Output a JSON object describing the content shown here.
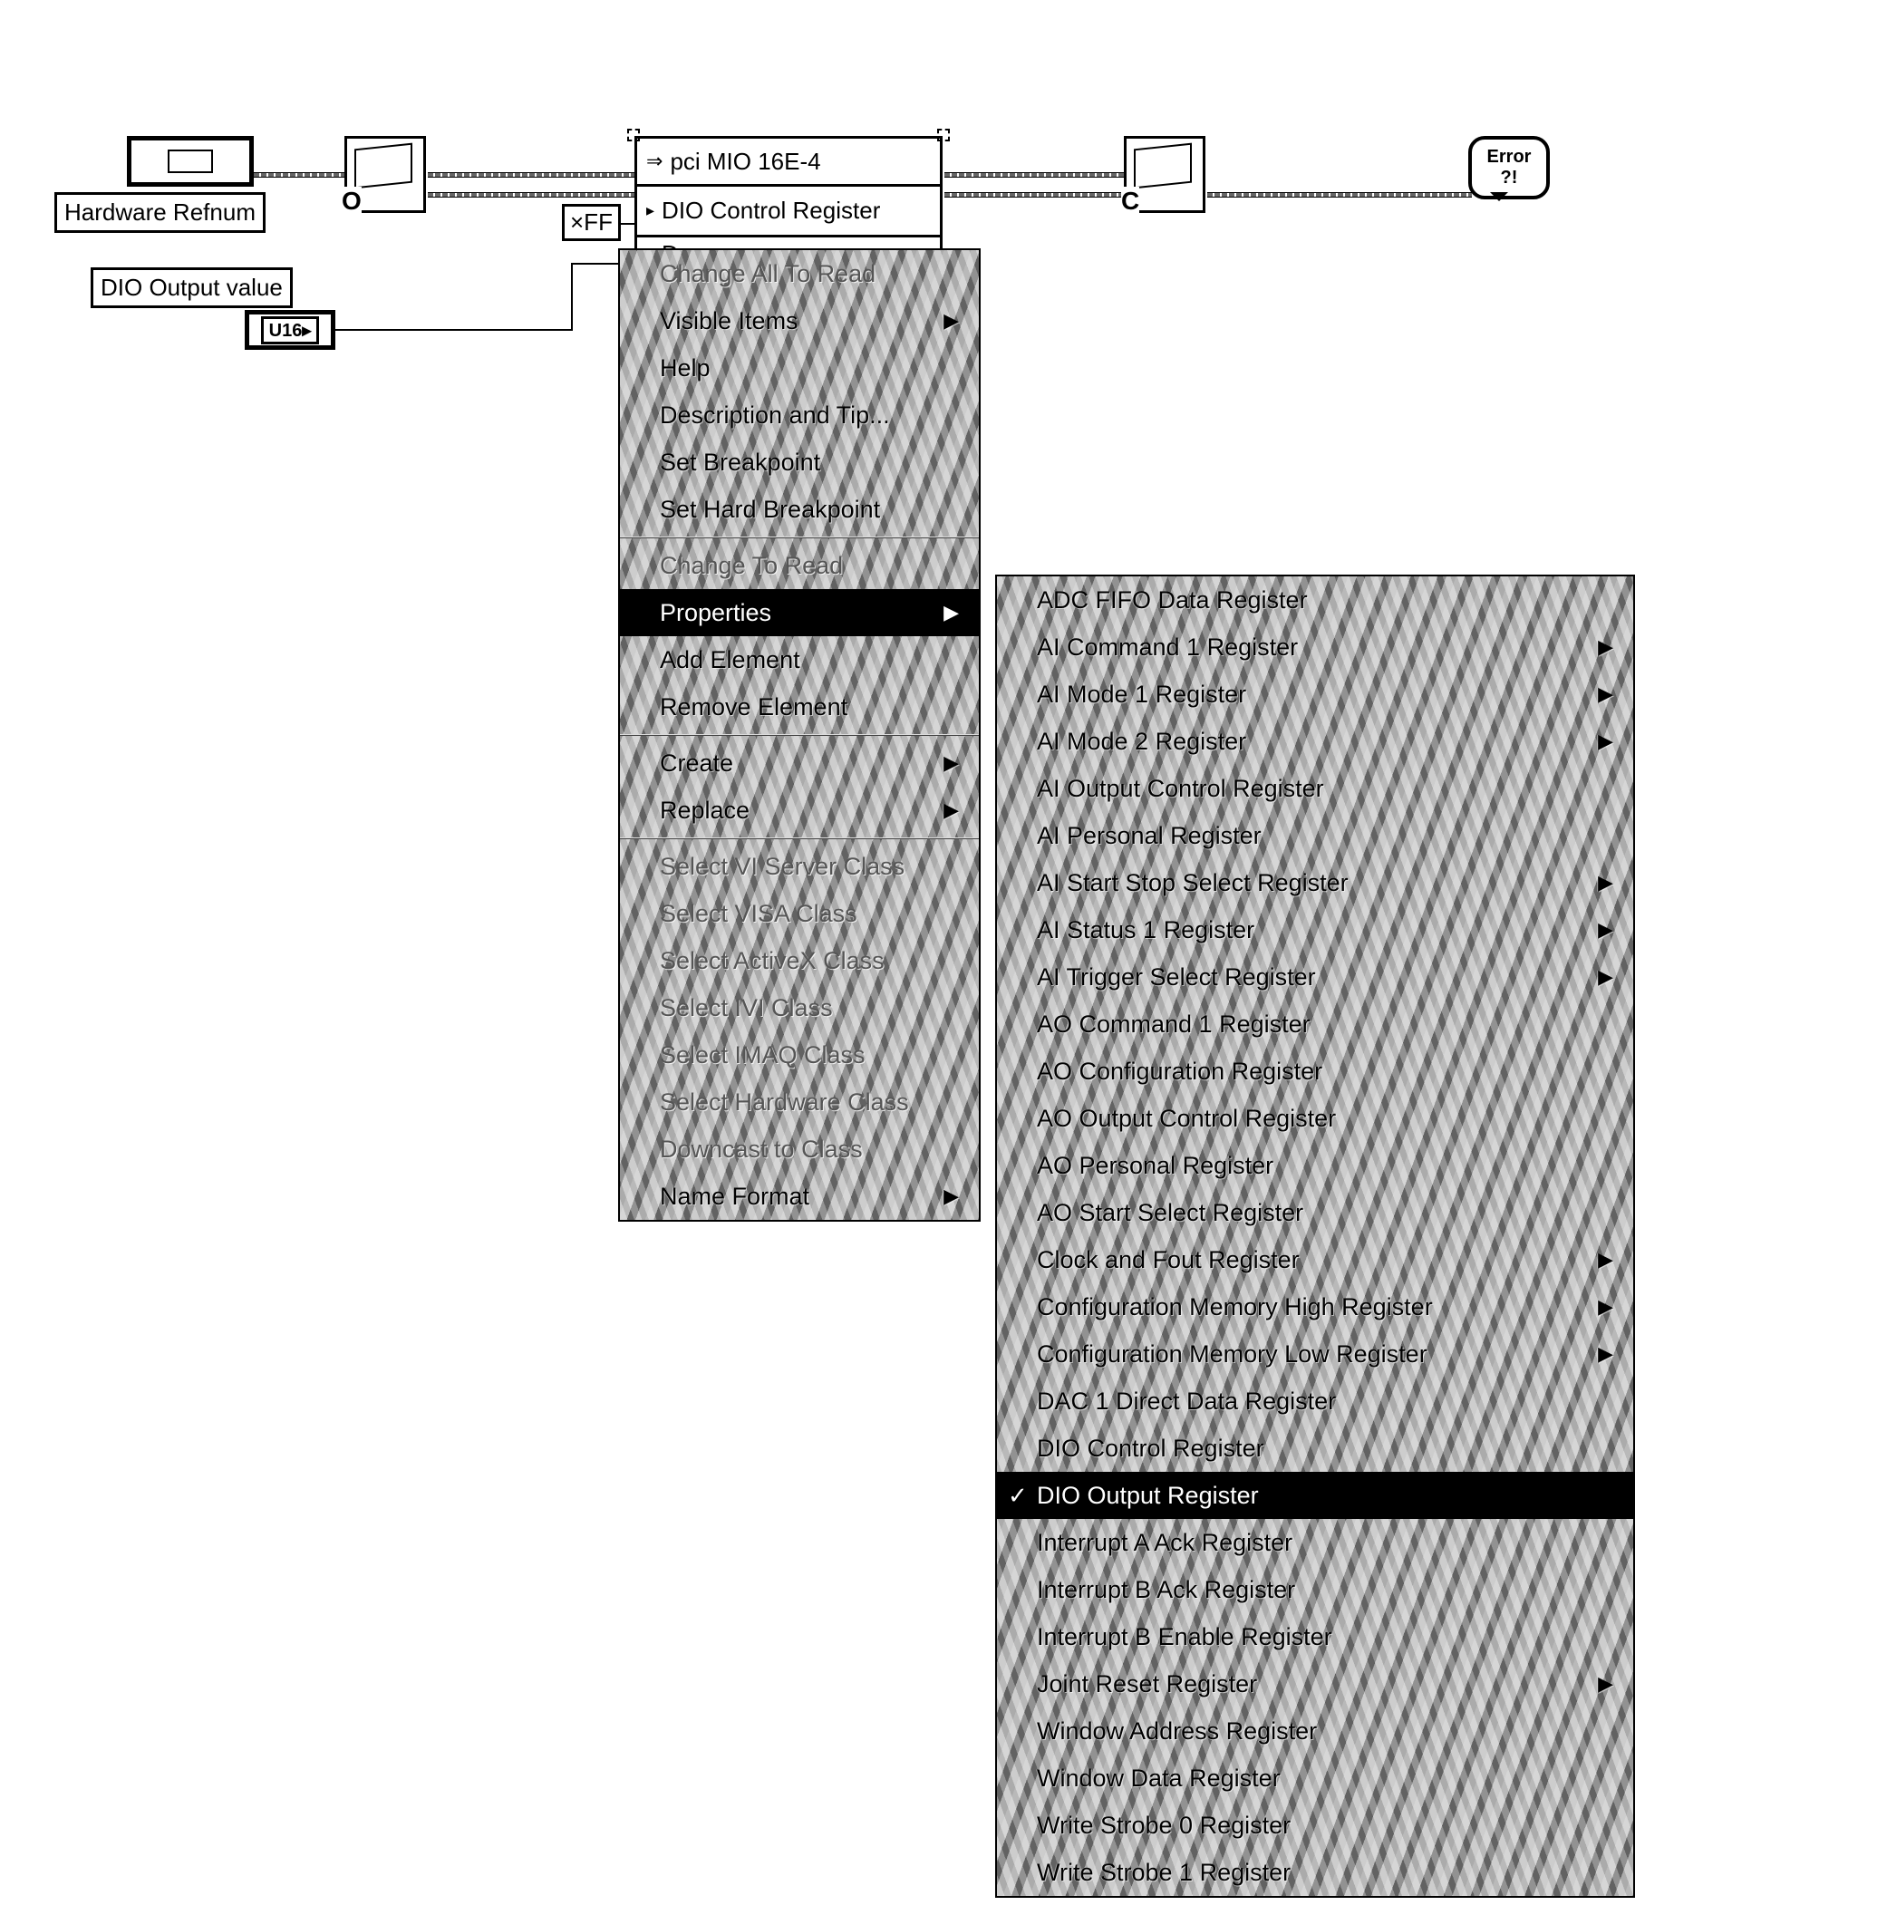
{
  "labels": {
    "hardware_refnum": "Hardware Refnum",
    "dio_output_value": "DIO Output value",
    "u16": "U16▸",
    "xff": "×FF"
  },
  "property_node": {
    "header_arrow": "⇒",
    "header_text": "pci MIO 16E-4",
    "row2_text": "DIO Control Register",
    "row3_text": "D"
  },
  "nodes": {
    "open_letter": "O",
    "close_letter": "C",
    "error_top": "Error",
    "error_q": "?!"
  },
  "menu1": {
    "items": [
      {
        "label": "Change All To Read",
        "state": "disabled",
        "arrow": false
      },
      {
        "label": "Visible Items",
        "state": "normal",
        "arrow": true
      },
      {
        "label": "Help",
        "state": "normal",
        "arrow": false
      },
      {
        "label": "Description and Tip...",
        "state": "normal",
        "arrow": false
      },
      {
        "label": "Set Breakpoint",
        "state": "normal",
        "arrow": false
      },
      {
        "label": "Set Hard Breakpoint",
        "state": "normal",
        "arrow": false
      },
      {
        "sep": true
      },
      {
        "label": "Change To Read",
        "state": "disabled",
        "arrow": false
      },
      {
        "label": "Properties",
        "state": "selected",
        "arrow": true
      },
      {
        "label": "Add Element",
        "state": "normal",
        "arrow": false
      },
      {
        "label": "Remove Element",
        "state": "normal",
        "arrow": false
      },
      {
        "sep": true
      },
      {
        "label": "Create",
        "state": "normal",
        "arrow": true
      },
      {
        "label": "Replace",
        "state": "normal",
        "arrow": true
      },
      {
        "sep": true
      },
      {
        "label": "Select VI Server Class",
        "state": "disabled",
        "arrow": false
      },
      {
        "label": "Select VISA Class",
        "state": "disabled",
        "arrow": false
      },
      {
        "label": "Select ActiveX Class",
        "state": "disabled",
        "arrow": false
      },
      {
        "label": "Select IVI Class",
        "state": "disabled",
        "arrow": false
      },
      {
        "label": "Select IMAQ Class",
        "state": "disabled",
        "arrow": false
      },
      {
        "label": "Select Hardware Class",
        "state": "disabled",
        "arrow": false
      },
      {
        "label": "Downcast to Class",
        "state": "disabled",
        "arrow": false
      },
      {
        "label": "Name Format",
        "state": "normal",
        "arrow": true
      }
    ]
  },
  "menu2": {
    "items": [
      {
        "label": "ADC FIFO Data Register",
        "arrow": false
      },
      {
        "label": "AI Command 1 Register",
        "arrow": true
      },
      {
        "label": "AI Mode 1 Register",
        "arrow": true
      },
      {
        "label": "AI Mode 2 Register",
        "arrow": true
      },
      {
        "label": "AI Output Control Register",
        "arrow": false
      },
      {
        "label": "AI Personal Register",
        "arrow": false
      },
      {
        "label": "AI Start Stop Select Register",
        "arrow": true
      },
      {
        "label": "AI Status 1 Register",
        "arrow": true
      },
      {
        "label": "AI Trigger Select Register",
        "arrow": true
      },
      {
        "label": "AO Command 1 Register",
        "arrow": false
      },
      {
        "label": "AO Configuration Register",
        "arrow": false
      },
      {
        "label": "AO Output Control Register",
        "arrow": false
      },
      {
        "label": "AO Personal Register",
        "arrow": false
      },
      {
        "label": "AO Start Select Register",
        "arrow": false
      },
      {
        "label": "Clock and Fout Register",
        "arrow": true
      },
      {
        "label": "Configuration Memory High Register",
        "arrow": true
      },
      {
        "label": "Configuration Memory Low Register",
        "arrow": true
      },
      {
        "label": "DAC 1 Direct Data Register",
        "arrow": false
      },
      {
        "label": "DIO Control Register",
        "arrow": false
      },
      {
        "label": "DIO Output Register",
        "selected": true,
        "check": true,
        "arrow": false
      },
      {
        "label": "Interrupt A Ack Register",
        "arrow": false
      },
      {
        "label": "Interrupt B Ack Register",
        "arrow": false
      },
      {
        "label": "Interrupt B Enable Register",
        "arrow": false
      },
      {
        "label": "Joint Reset Register",
        "arrow": true
      },
      {
        "label": "Window Address Register",
        "arrow": false
      },
      {
        "label": "Window Data Register",
        "arrow": false
      },
      {
        "label": "Write Strobe 0 Register",
        "arrow": false
      },
      {
        "label": "Write Strobe 1 Register",
        "arrow": false
      }
    ]
  },
  "colors": {
    "bg": "#ffffff",
    "menu_bg": "#808080",
    "selection": "#000000"
  }
}
